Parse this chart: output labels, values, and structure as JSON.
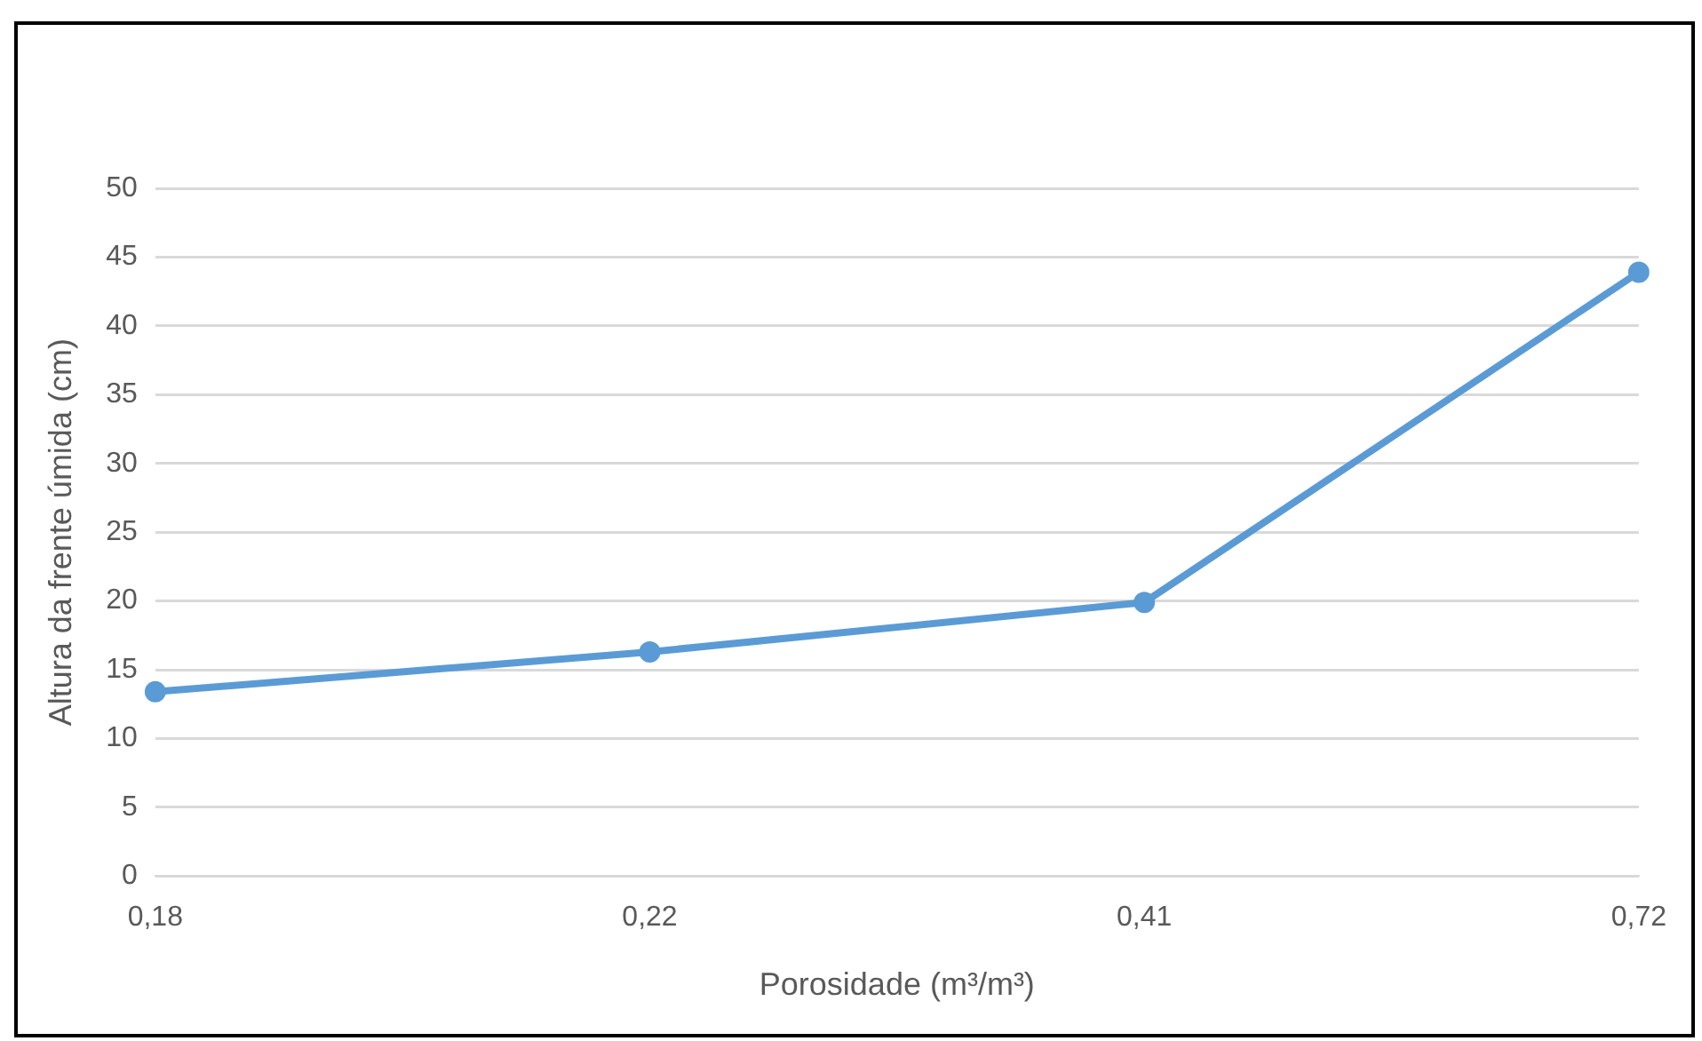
{
  "chart_data": {
    "type": "line",
    "xlabel": "Porosidade (m³/m³)",
    "ylabel": "Altura da frente úmida (cm)",
    "categories": [
      "0,18",
      "0,22",
      "0,41",
      "0,72"
    ],
    "series": [
      {
        "color": "#5b9bd5",
        "values": [
          13.4,
          16.3,
          19.9,
          43.9
        ]
      }
    ],
    "ylim": [
      0,
      50
    ],
    "yticks": [
      0,
      5,
      10,
      15,
      20,
      25,
      30,
      35,
      40,
      45,
      50
    ],
    "grid": "y",
    "legend": false,
    "marker": "circle",
    "line_style": "solid"
  }
}
